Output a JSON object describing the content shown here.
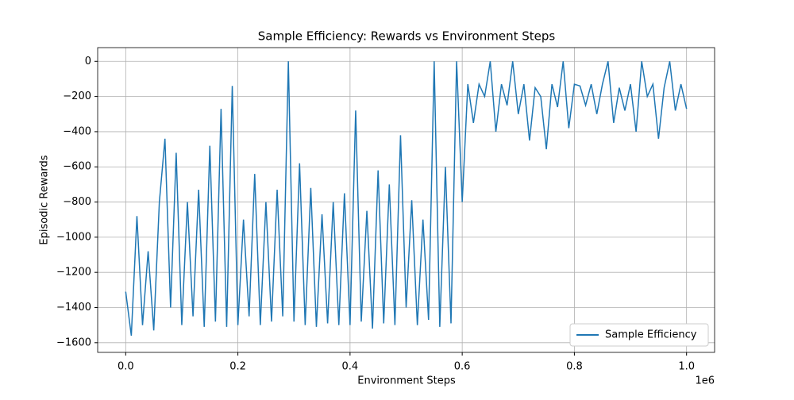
{
  "chart_data": {
    "type": "line",
    "title": "Sample Efficiency: Rewards vs Environment Steps",
    "x_label": "Environment Steps",
    "y_label": "Episodic Rewards",
    "x_offset_label": "1e6",
    "x": [
      0,
      10000,
      20000,
      30000,
      40000,
      50000,
      60000,
      70000,
      80000,
      90000,
      100000,
      110000,
      120000,
      130000,
      140000,
      150000,
      160000,
      170000,
      180000,
      190000,
      200000,
      210000,
      220000,
      230000,
      240000,
      250000,
      260000,
      270000,
      280000,
      290000,
      300000,
      310000,
      320000,
      330000,
      340000,
      350000,
      360000,
      370000,
      380000,
      390000,
      400000,
      410000,
      420000,
      430000,
      440000,
      450000,
      460000,
      470000,
      480000,
      490000,
      500000,
      510000,
      520000,
      530000,
      540000,
      550000,
      560000,
      570000,
      580000,
      590000,
      600000,
      610000,
      620000,
      630000,
      640000,
      650000,
      660000,
      670000,
      680000,
      690000,
      700000,
      710000,
      720000,
      730000,
      740000,
      750000,
      760000,
      770000,
      780000,
      790000,
      800000,
      810000,
      820000,
      830000,
      840000,
      850000,
      860000,
      870000,
      880000,
      890000,
      900000,
      910000,
      920000,
      930000,
      940000,
      950000,
      960000,
      970000,
      980000,
      990000,
      1000000
    ],
    "series": [
      {
        "name": "Sample Efficiency",
        "color": "#1f77b4",
        "values": [
          -1310,
          -1560,
          -880,
          -1500,
          -1080,
          -1530,
          -800,
          -440,
          -1400,
          -520,
          -1500,
          -800,
          -1450,
          -730,
          -1510,
          -480,
          -1480,
          -270,
          -1510,
          -140,
          -1500,
          -900,
          -1450,
          -640,
          -1500,
          -800,
          -1480,
          -730,
          -1450,
          0,
          -1480,
          -580,
          -1500,
          -720,
          -1510,
          -870,
          -1490,
          -800,
          -1500,
          -750,
          -1500,
          -280,
          -1480,
          -850,
          -1520,
          -620,
          -1490,
          -700,
          -1500,
          -420,
          -1400,
          -790,
          -1500,
          -900,
          -1470,
          0,
          -1510,
          -600,
          -1490,
          0,
          -800,
          -130,
          -350,
          -130,
          -200,
          0,
          -400,
          -130,
          -250,
          0,
          -300,
          -130,
          -450,
          -150,
          -200,
          -500,
          -130,
          -260,
          0,
          -380,
          -130,
          -140,
          -250,
          -130,
          -300,
          -130,
          0,
          -350,
          -150,
          -280,
          -130,
          -400,
          0,
          -200,
          -130,
          -440,
          -150,
          0,
          -280,
          -130,
          -270
        ]
      }
    ],
    "xlim": [
      -50000,
      1050000
    ],
    "xticks": [
      {
        "value": 0,
        "label": "0.0"
      },
      {
        "value": 200000,
        "label": "0.2"
      },
      {
        "value": 400000,
        "label": "0.4"
      },
      {
        "value": 600000,
        "label": "0.6"
      },
      {
        "value": 800000,
        "label": "0.8"
      },
      {
        "value": 1000000,
        "label": "1.0"
      }
    ],
    "ylim": [
      -1655,
      78
    ],
    "yticks": [
      {
        "value": -1600,
        "label": "−1600"
      },
      {
        "value": -1400,
        "label": "−1400"
      },
      {
        "value": -1200,
        "label": "−1200"
      },
      {
        "value": -1000,
        "label": "−1000"
      },
      {
        "value": -800,
        "label": "−800"
      },
      {
        "value": -600,
        "label": "−600"
      },
      {
        "value": -400,
        "label": "−400"
      },
      {
        "value": -200,
        "label": "−200"
      },
      0
    ],
    "grid": true,
    "legend": "lower right"
  }
}
